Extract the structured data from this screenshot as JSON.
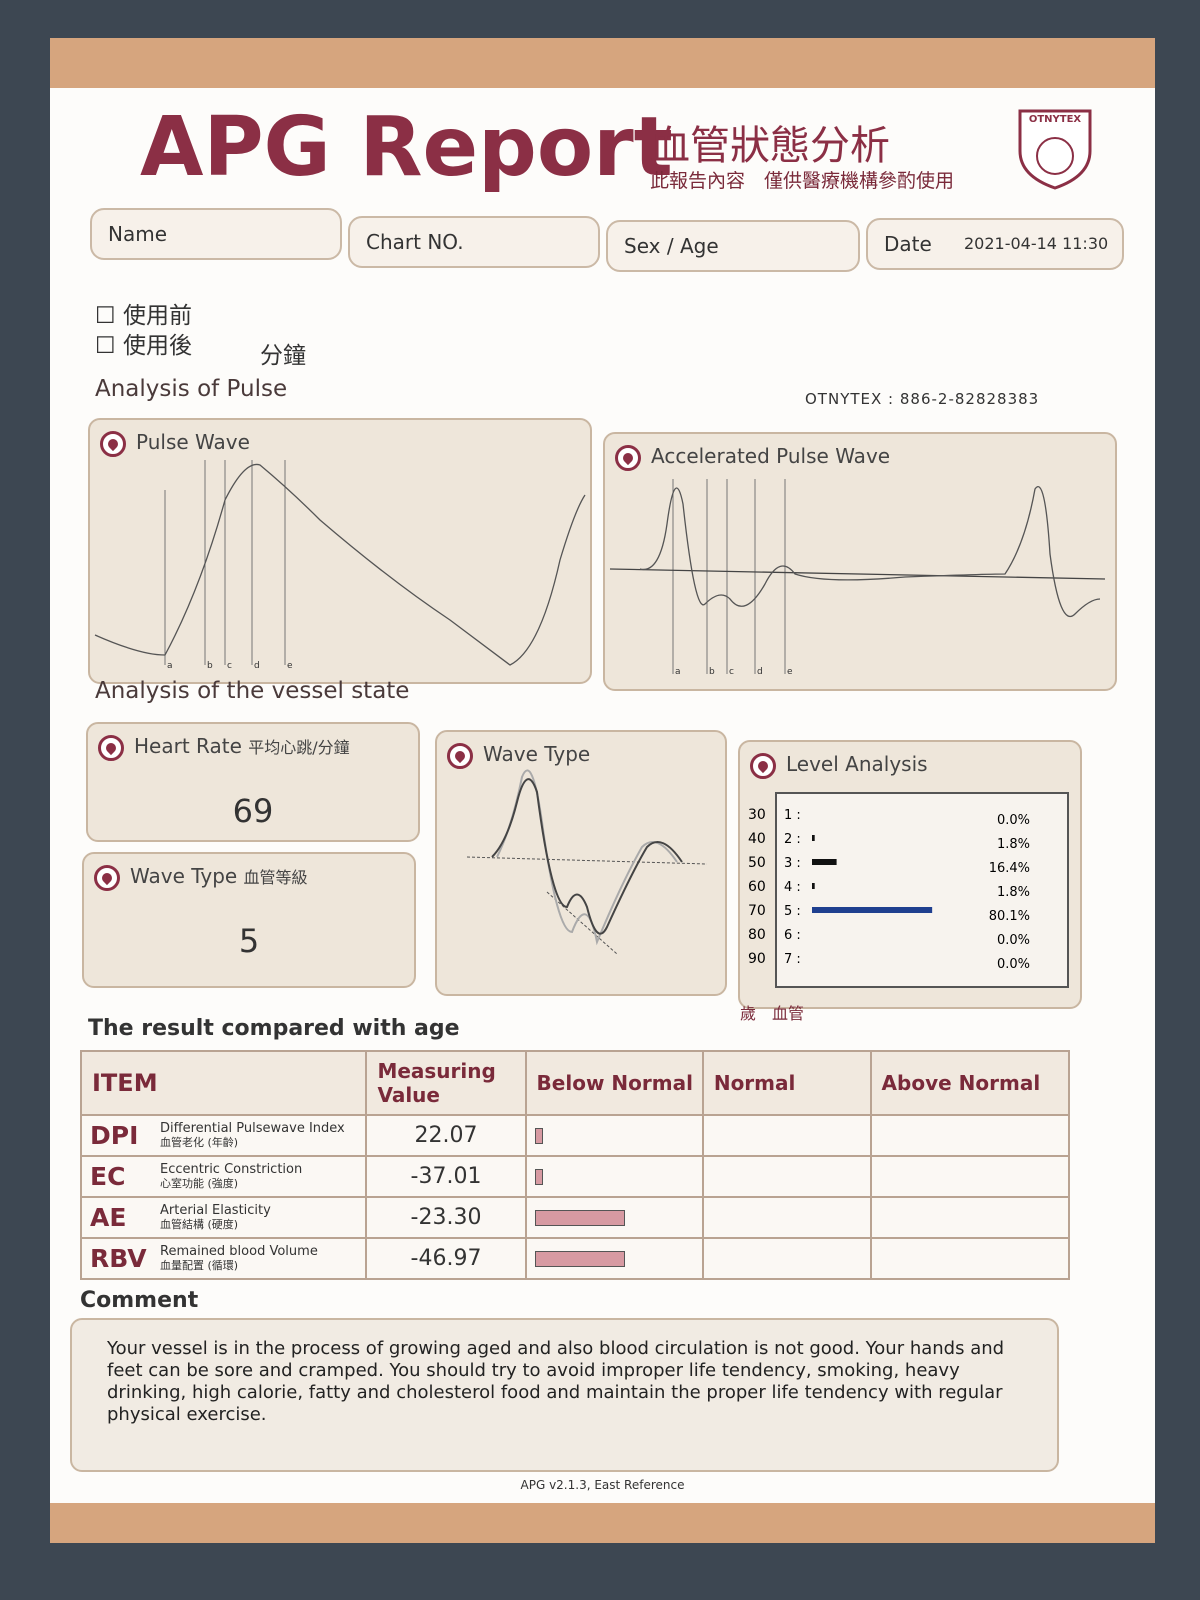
{
  "header": {
    "title": "APG Report",
    "title_cn": "血管狀態分析",
    "subtitle_cn": "此報告內容　僅供醫療機構參酌使用",
    "logo": "OTNYTEX"
  },
  "fields": [
    {
      "label": "Name"
    },
    {
      "label": "Chart NO."
    },
    {
      "label": "Sex / Age"
    },
    {
      "label": "Date",
      "value": "2021-04-14 11:30"
    }
  ],
  "checkboxes": [
    "使用前",
    "使用後"
  ],
  "minutes_label": "分鐘",
  "pulse_section": {
    "title": "Analysis of Pulse",
    "contact": "OTNYTEX : 886-2-82828383",
    "pulse_wave": {
      "title": "Pulse Wave",
      "markers": [
        "a",
        "b",
        "c",
        "d",
        "e"
      ]
    },
    "accelerated": {
      "title": "Accelerated Pulse Wave",
      "markers": [
        "a",
        "b",
        "c",
        "d",
        "e"
      ]
    }
  },
  "vessel_section": {
    "title": "Analysis of the vessel state",
    "heart_rate": {
      "title": "Heart Rate",
      "title_cn": "平均心跳/分鐘",
      "value": "69"
    },
    "wave_type_level": {
      "title": "Wave Type",
      "title_cn": "血管等級",
      "value": "5"
    },
    "wave_type": {
      "title": "Wave Type"
    }
  },
  "level_analysis": {
    "title": "Level Analysis",
    "ages": [
      "30",
      "40",
      "50",
      "60",
      "70",
      "80",
      "90"
    ],
    "levels": [
      "1 :",
      "2 :",
      "3 :",
      "4 :",
      "5 :",
      "6 :",
      "7 :"
    ],
    "values": [
      0,
      1.8,
      16.4,
      1.8,
      80.1,
      0,
      0
    ],
    "value_labels": [
      "0.0%",
      "1.8%",
      "16.4%",
      "1.8%",
      "80.1%",
      "0.0%",
      "0.0%"
    ],
    "footer": "歲　血管"
  },
  "comparison": {
    "title": "The result compared with age",
    "columns": [
      "ITEM",
      "Measuring Value",
      "Below Normal",
      "Normal",
      "Above Normal"
    ],
    "rows": [
      {
        "code": "DPI",
        "name": "Differential Pulsewave Index",
        "name_cn": "血管老化 (年齡)",
        "value": "22.07"
      },
      {
        "code": "EC",
        "name": "Eccentric Constriction",
        "name_cn": "心室功能 (強度)",
        "value": "-37.01"
      },
      {
        "code": "AE",
        "name": "Arterial Elasticity",
        "name_cn": "血管結構 (硬度)",
        "value": "-23.30"
      },
      {
        "code": "RBV",
        "name": "Remained blood Volume",
        "name_cn": "血量配置 (循環)",
        "value": "-46.97"
      }
    ]
  },
  "comment": {
    "title": "Comment",
    "text": "Your vessel is in the process of growing aged and also blood circulation is not good. Your hands and feet can be sore and cramped. You should try to avoid improper life tendency, smoking, heavy drinking, high calorie, fatty and cholesterol food and maintain the proper life tendency with regular physical exercise."
  },
  "footer": "APG v2.1.3, East Reference"
}
